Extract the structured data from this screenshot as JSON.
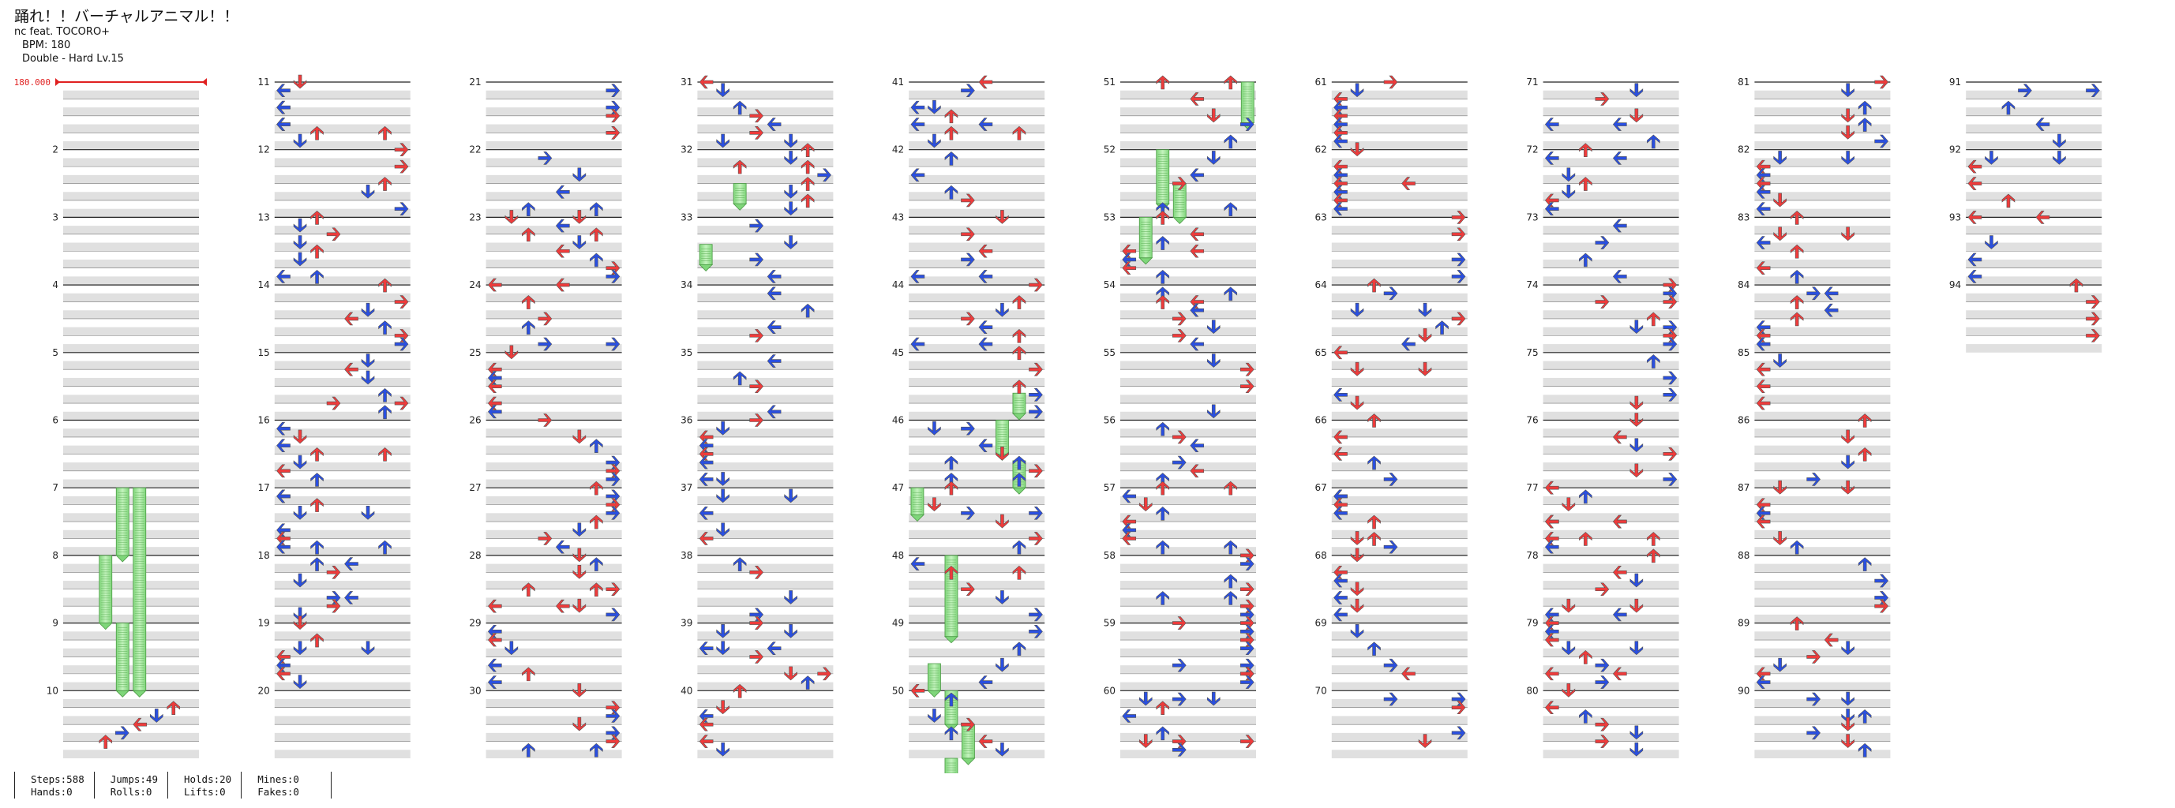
{
  "song": {
    "title": "踊れ！！バーチャルアニマル！！",
    "artist": "nc feat. TOCORO+",
    "bpm_label": "BPM: 180",
    "difficulty": "Double - Hard Lv.15"
  },
  "bpm_marker": "180.000",
  "stats": [
    {
      "a_label": "Steps",
      "a_value": "588",
      "b_label": "Hands",
      "b_value": "0"
    },
    {
      "a_label": "Jumps",
      "a_value": "49",
      "b_label": "Rolls",
      "b_value": "0"
    },
    {
      "a_label": "Holds",
      "a_value": "20",
      "b_label": "Lifts",
      "b_value": "0"
    },
    {
      "a_label": "Mines",
      "a_value": "0",
      "b_label": "Fakes",
      "b_value": "0"
    }
  ],
  "colors": {
    "red_arrow": "#ee3b3b",
    "blue_arrow": "#2a4fe0",
    "yellow_arrow": "#f2e23a",
    "hold_green": "#9fe39a",
    "stripe_gray": "#e0e0e0",
    "bpm_red": "#e02020"
  },
  "chart": {
    "mode": "Double",
    "columns": 8,
    "measures_per_column": 10,
    "total_measures": 94,
    "measure_labels": [
      "2",
      "3",
      "4",
      "5",
      "6",
      "7",
      "8",
      "9",
      "10",
      "11",
      "12",
      "13",
      "14",
      "15",
      "16",
      "17",
      "18",
      "19",
      "20",
      "21",
      "22",
      "23",
      "24",
      "25",
      "26",
      "27",
      "28",
      "29",
      "30",
      "31",
      "32",
      "33",
      "34",
      "35",
      "36",
      "37",
      "38",
      "39",
      "40",
      "41",
      "42",
      "43",
      "44",
      "45",
      "46",
      "47",
      "48",
      "49",
      "50",
      "51",
      "52",
      "53",
      "54",
      "55",
      "56",
      "57",
      "58",
      "59",
      "60",
      "61",
      "62",
      "63",
      "64",
      "65",
      "66",
      "67",
      "68",
      "69",
      "70",
      "71",
      "72",
      "73",
      "74",
      "75",
      "76",
      "77",
      "78",
      "79",
      "80",
      "81",
      "82",
      "83",
      "84",
      "85",
      "86",
      "87",
      "88",
      "89",
      "90",
      "91",
      "92",
      "93",
      "94"
    ]
  }
}
